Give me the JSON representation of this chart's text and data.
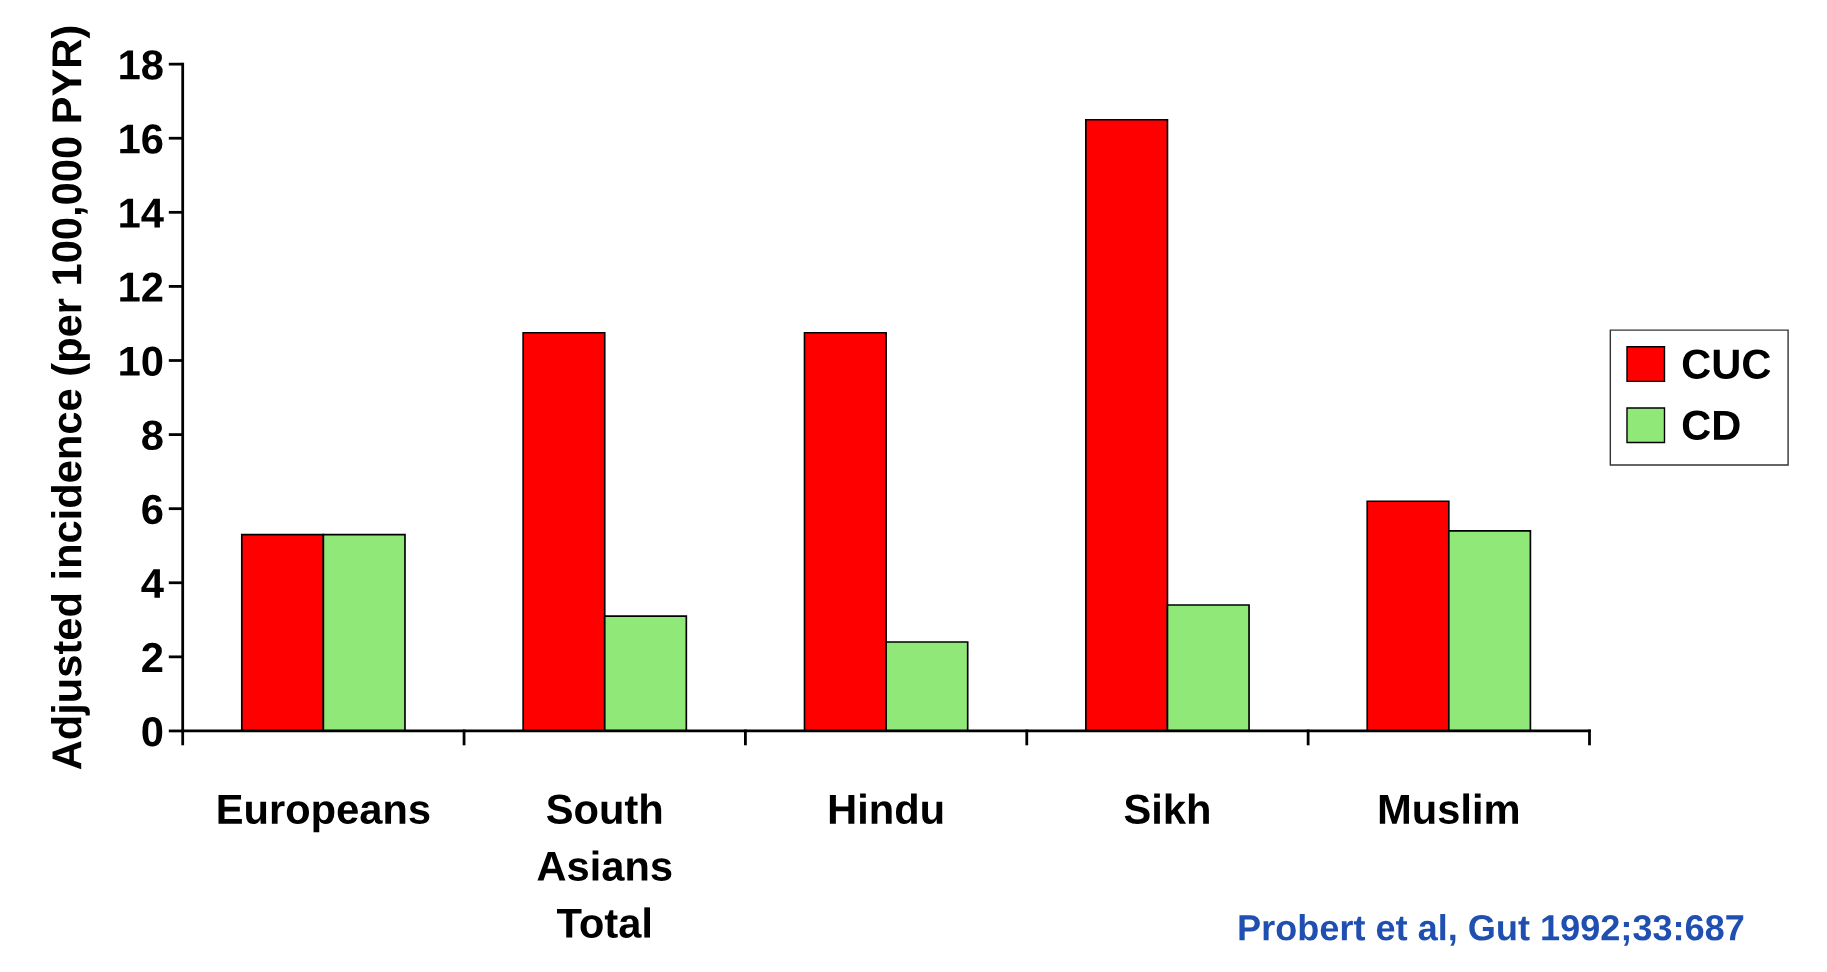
{
  "chart_data": {
    "type": "bar",
    "ylabel": "Adjusted incidence (per 100,000 PYR)",
    "categories": [
      "Europeans",
      "South\nAsians\nTotal",
      "Hindu",
      "Sikh",
      "Muslim"
    ],
    "series": [
      {
        "name": "CUC",
        "color": "#ff0000",
        "values": [
          5.3,
          10.75,
          10.75,
          16.5,
          6.2
        ]
      },
      {
        "name": "CD",
        "color": "#90e878",
        "values": [
          5.3,
          3.1,
          2.4,
          3.4,
          5.4
        ]
      }
    ],
    "ylim": [
      0,
      18
    ],
    "yticks": [
      0,
      2,
      4,
      6,
      8,
      10,
      12,
      14,
      16,
      18
    ],
    "grid": false,
    "legend": "right",
    "annotations": [
      "Probert et al, Gut 1992;33:687"
    ]
  }
}
